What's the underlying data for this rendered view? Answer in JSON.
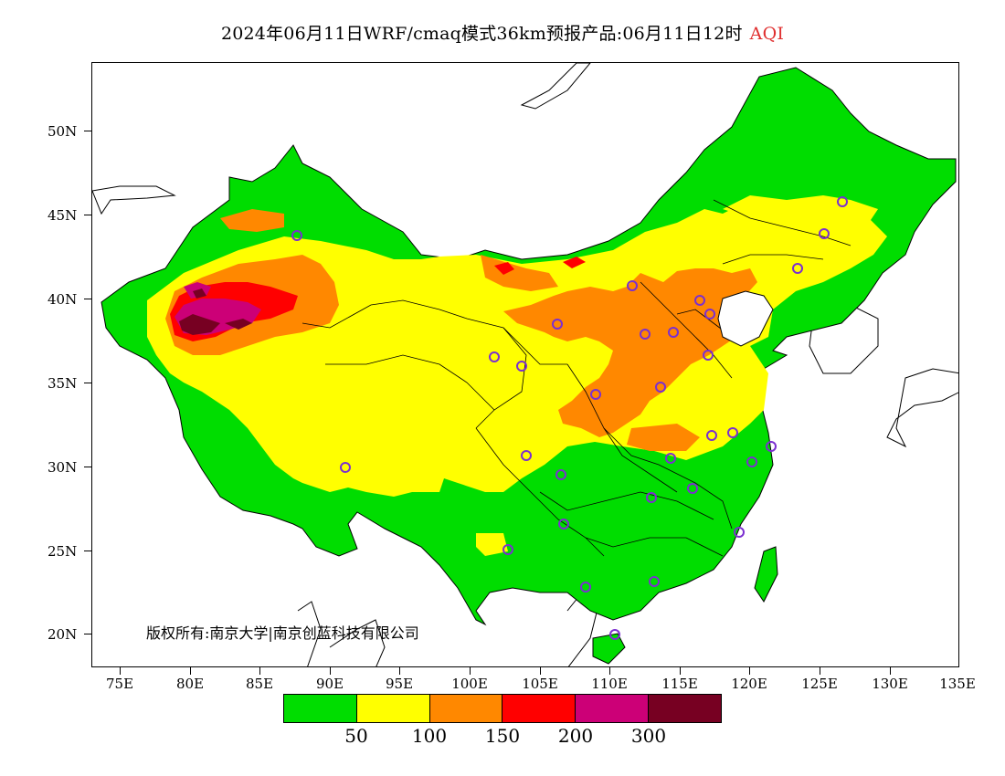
{
  "title": {
    "main": "2024年06月11日WRF/cmaq模式36km预报产品:06月11日12时",
    "variable": "AQI"
  },
  "map": {
    "lat_labels": [
      "50N",
      "45N",
      "40N",
      "35N",
      "30N",
      "25N",
      "20N"
    ],
    "lon_labels": [
      "75E",
      "80E",
      "85E",
      "90E",
      "95E",
      "100E",
      "105E",
      "110E",
      "115E",
      "120E",
      "125E",
      "130E",
      "135E"
    ],
    "copyright": "版权所有:南京大学|南京创蓝科技有限公司",
    "station_marker_color": "#7b2fd0",
    "region_levels": [
      "AQI ≤ 50 over most of southern China, northeast, Tibet and northern Xinjiang",
      "50–100 over Qinghai, Gansu, Inner Mongolia and Sichuan basin edges",
      "100–150 over North China Plain and Tarim Basin",
      "150–300+ hotspot in the Tarim Basin"
    ]
  },
  "colorbar": {
    "colors": [
      "#00dd00",
      "#ffff00",
      "#ff8800",
      "#ff0000",
      "#cc0077",
      "#770022"
    ],
    "labels": [
      "50",
      "100",
      "150",
      "200",
      "300"
    ]
  }
}
